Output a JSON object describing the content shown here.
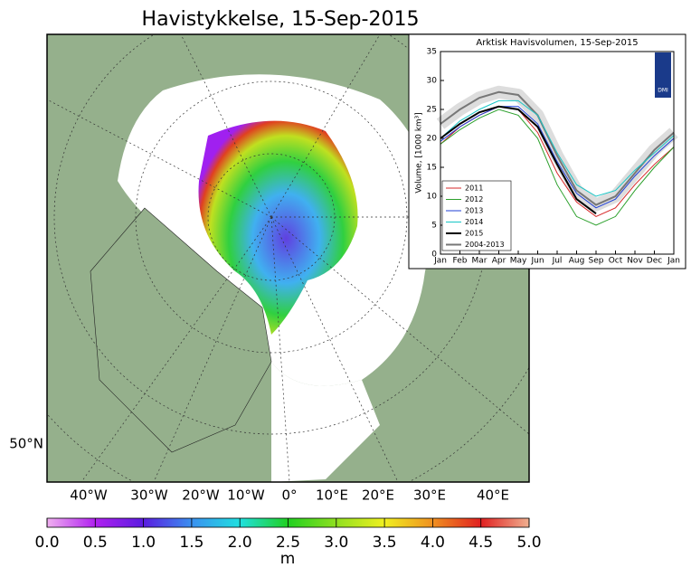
{
  "map": {
    "title": "Havistykkelse, 15-Sep-2015",
    "lon_labels": [
      "40°W",
      "30°W",
      "20°W",
      "10°W",
      "0°",
      "10°E",
      "20°E",
      "30°E",
      "40°E"
    ],
    "lat_label": "50°N",
    "colorbar": {
      "ticks": [
        {
          "value": 0,
          "label": "0.0"
        },
        {
          "value": 0.5,
          "label": "0.5"
        },
        {
          "value": 1,
          "label": "1.0"
        },
        {
          "value": 1.5,
          "label": "1.5"
        },
        {
          "value": 2,
          "label": "2.0"
        },
        {
          "value": 2.5,
          "label": "2.5"
        },
        {
          "value": 3,
          "label": "3.0"
        },
        {
          "value": 3.5,
          "label": "3.5"
        },
        {
          "value": 4,
          "label": "4.0"
        },
        {
          "value": 4.5,
          "label": "4.5"
        },
        {
          "value": 5,
          "label": "5.0"
        }
      ],
      "lim": [
        0,
        5
      ],
      "unit": "m"
    },
    "logo": "DMI"
  },
  "chart_data": {
    "type": "line",
    "title": "Arktisk Havisvolumen, 15-Sep-2015",
    "ylabel": "Volume, [1000 km³]",
    "categories": [
      "Jan",
      "Feb",
      "Mar",
      "Apr",
      "May",
      "Jun",
      "Jul",
      "Aug",
      "Sep",
      "Oct",
      "Nov",
      "Dec",
      "Jan"
    ],
    "ylim": [
      0,
      35
    ],
    "yticks": [
      0,
      5,
      10,
      15,
      20,
      25,
      30,
      35
    ],
    "series": [
      {
        "name": "2011",
        "color": "#d62728",
        "values": [
          19,
          22,
          24,
          25.5,
          25,
          21,
          14,
          9,
          6.5,
          8,
          12,
          15.5,
          18.5
        ]
      },
      {
        "name": "2012",
        "color": "#2ca02c",
        "values": [
          19,
          21.5,
          23.5,
          25,
          24,
          20,
          12,
          6.5,
          5,
          6.5,
          11,
          15,
          18.5
        ]
      },
      {
        "name": "2013",
        "color": "#1f3fd6",
        "values": [
          19.5,
          22,
          24,
          25.5,
          25.5,
          22.5,
          16,
          10.5,
          8,
          9.5,
          13.5,
          17,
          20
        ]
      },
      {
        "name": "2014",
        "color": "#17c6c6",
        "values": [
          20,
          23,
          25,
          26.5,
          26.5,
          24,
          17.5,
          12,
          10,
          11,
          14.5,
          17.5,
          20.5
        ]
      },
      {
        "name": "2015",
        "color": "#000000",
        "values": [
          20,
          22.5,
          24.5,
          25.5,
          25,
          22,
          15.5,
          9.5,
          7,
          null,
          null,
          null,
          null
        ]
      },
      {
        "name": "2004-2013",
        "color": "#777777",
        "values": [
          22.5,
          25,
          27,
          28,
          27.5,
          24,
          17,
          11,
          8.5,
          10,
          14,
          18,
          21
        ]
      }
    ]
  }
}
